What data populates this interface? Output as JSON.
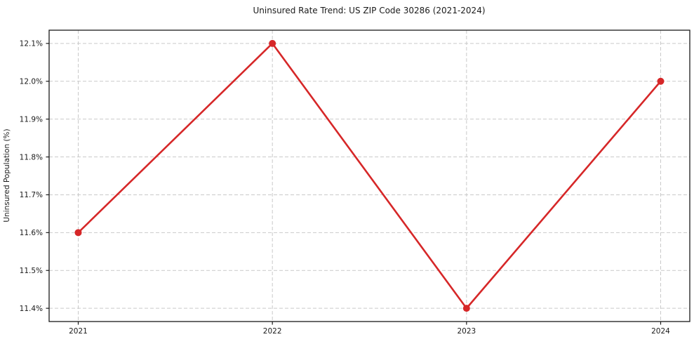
{
  "chart_data": {
    "type": "line",
    "title": "Uninsured Rate Trend: US ZIP Code 30286 (2021-2024)",
    "xlabel": "",
    "ylabel": "Uninsured Population (%)",
    "x": [
      2021,
      2022,
      2023,
      2024
    ],
    "x_tick_labels": [
      "2021",
      "2022",
      "2023",
      "2024"
    ],
    "series": [
      {
        "name": "Uninsured Population (%)",
        "values": [
          11.6,
          12.1,
          11.4,
          12.0
        ],
        "color": "#d62728",
        "marker": "circle"
      }
    ],
    "y_ticks": [
      11.4,
      11.5,
      11.6,
      11.7,
      11.8,
      11.9,
      12.0,
      12.1
    ],
    "y_tick_labels": [
      "11.4%",
      "11.5%",
      "11.6%",
      "11.7%",
      "11.8%",
      "11.9%",
      "12.0%",
      "12.1%"
    ],
    "ylim": [
      11.365,
      12.135
    ],
    "xlim": [
      2020.85,
      2024.15
    ],
    "grid": true,
    "grid_style": "dashed",
    "legend_position": "none",
    "colors": {
      "line": "#d62728",
      "marker": "#d62728",
      "grid": "#c9c9c9",
      "spine": "#1a1a1a",
      "text": "#1a1a1a",
      "background": "#ffffff"
    }
  }
}
